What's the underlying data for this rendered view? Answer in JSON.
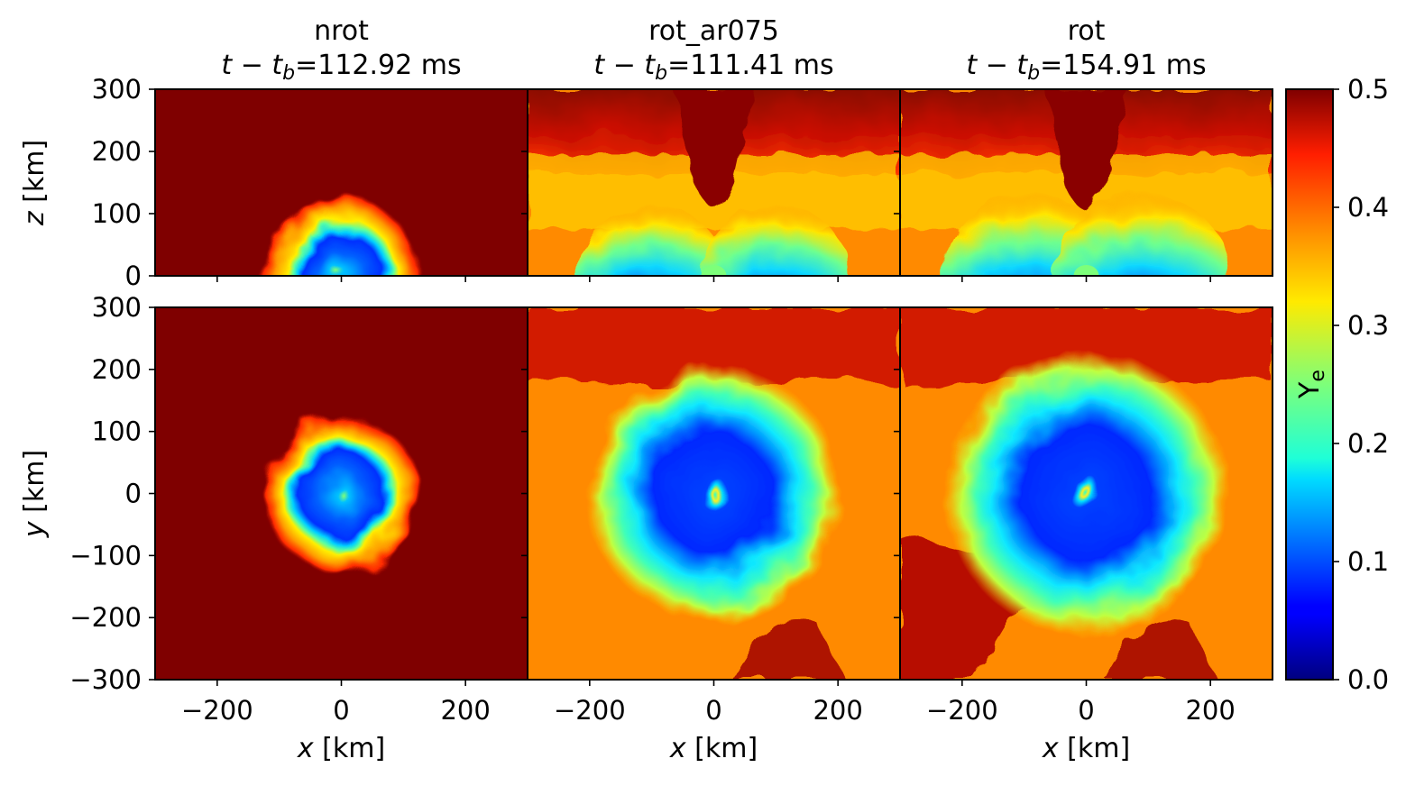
{
  "chart_data": {
    "type": "heatmap",
    "quantity": "Y_e",
    "colormap": "jet",
    "colorbar": {
      "label": "Y",
      "label_sub": "e",
      "range": [
        0.0,
        0.5
      ],
      "ticks": [
        "0.0",
        "0.1",
        "0.2",
        "0.3",
        "0.4",
        "0.5"
      ]
    },
    "columns": [
      {
        "model": "nrot",
        "time_prefix": "t − t",
        "time_sub": "b",
        "time_value": "=112.92 ms",
        "upper_profile": {
          "kind": "blob",
          "radius_km": 130,
          "core_radius_km": 75,
          "lobe_offset_km": 0
        },
        "lower_profile": {
          "kind": "blob",
          "radius_km": 130,
          "core_radius_km": 75,
          "swirl": false
        }
      },
      {
        "model": "rot_ar075",
        "time_prefix": "t − t",
        "time_sub": "b",
        "time_value": "=111.41 ms",
        "upper_profile": {
          "kind": "lobes",
          "lobe_offset_km": 100,
          "lobe_radius_km": 120,
          "bubble_top_km": 150
        },
        "lower_profile": {
          "kind": "spiral",
          "disk_radius_km": 180,
          "core_radius_km": 110,
          "swirl": true
        }
      },
      {
        "model": "rot",
        "time_prefix": "t − t",
        "time_sub": "b",
        "time_value": "=154.91 ms",
        "upper_profile": {
          "kind": "lobes",
          "lobe_offset_km": 90,
          "lobe_radius_km": 140,
          "bubble_top_km": 140
        },
        "lower_profile": {
          "kind": "spiral",
          "disk_radius_km": 200,
          "core_radius_km": 125,
          "swirl": true
        }
      }
    ],
    "rows": [
      {
        "ylabel_var": "z",
        "ylabel_unit": " [km]",
        "ylim": [
          0,
          300
        ],
        "yticks": [
          "0",
          "100",
          "200",
          "300"
        ]
      },
      {
        "ylabel_var": "y",
        "ylabel_unit": " [km]",
        "ylim": [
          -300,
          300
        ],
        "yticks": [
          "−300",
          "−200",
          "−100",
          "0",
          "100",
          "200",
          "300"
        ]
      }
    ],
    "x": {
      "label_var": "x",
      "label_unit": " [km]",
      "xlim": [
        -300,
        300
      ],
      "ticks": [
        "−200",
        "0",
        "200"
      ]
    }
  }
}
